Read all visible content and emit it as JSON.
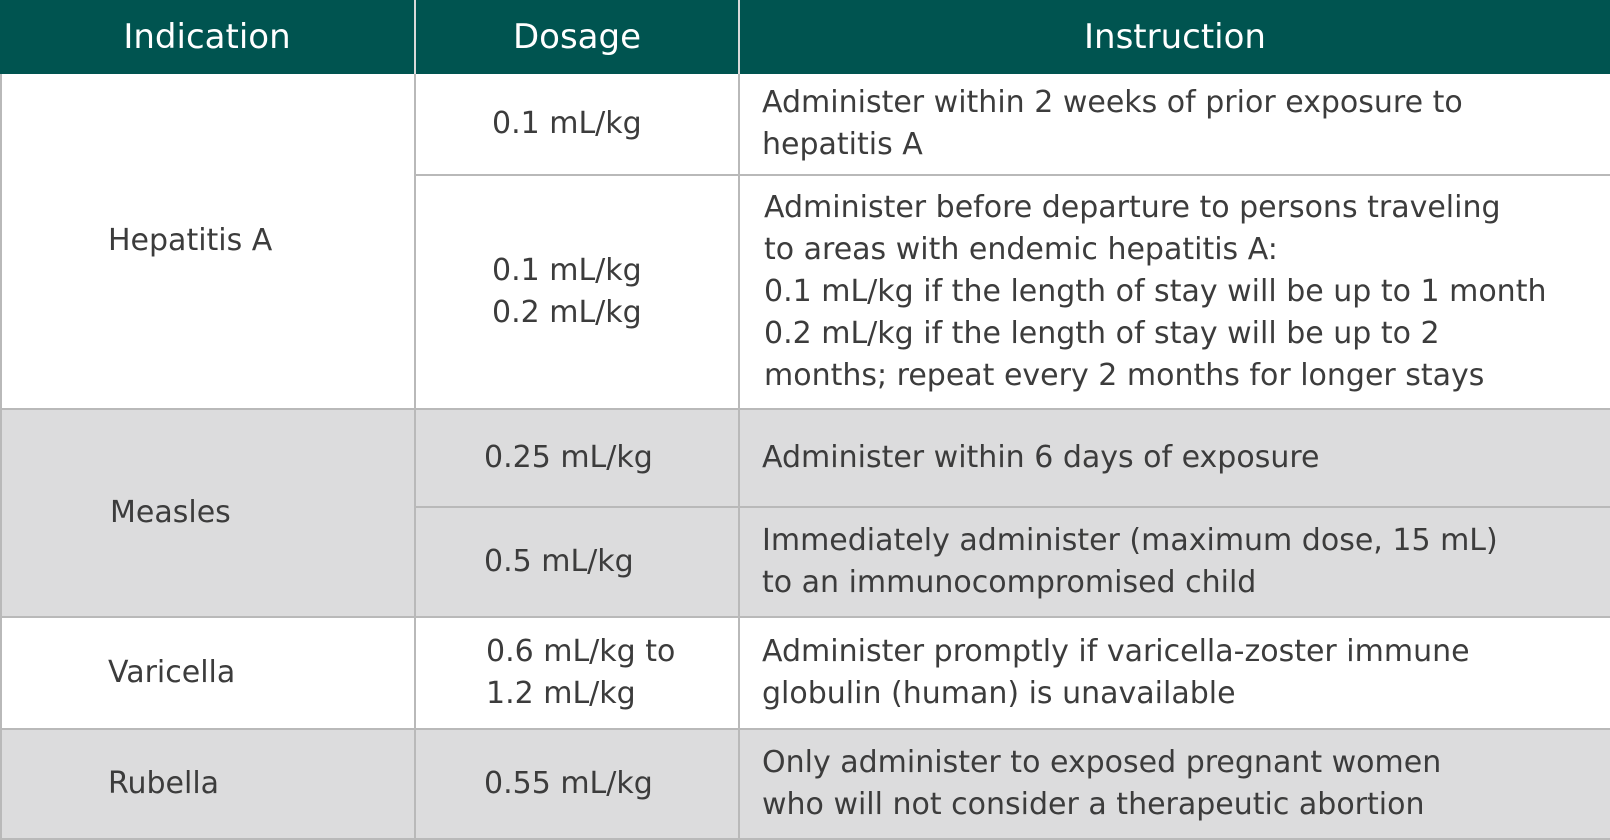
{
  "headers": [
    "Indication",
    "Dosage",
    "Instruction"
  ],
  "indications": [
    {
      "name": "Hepatitis A",
      "rows": [
        {
          "dosage": "0.1 mL/kg",
          "instruction": "Administer within 2 weeks of prior exposure to\nhepatitis A"
        },
        {
          "dosage": "0.1 mL/kg\n0.2 mL/kg",
          "instruction": "Administer before departure to persons traveling\nto areas with endemic hepatitis A:\n0.1 mL/kg if the length of stay will be up to 1 month\n0.2 mL/kg if the length of stay will be up to 2\nmonths; repeat every 2 months for longer stays"
        }
      ]
    },
    {
      "name": "Measles",
      "rows": [
        {
          "dosage": "0.25 mL/kg",
          "instruction": "Administer within 6 days of exposure"
        },
        {
          "dosage": "0.5 mL/kg",
          "instruction": "Immediately administer (maximum dose, 15 mL)\nto an immunocompromised child"
        }
      ]
    },
    {
      "name": "Varicella",
      "rows": [
        {
          "dosage": "0.6 mL/kg to\n1.2 mL/kg",
          "instruction": "Administer promptly if varicella-zoster immune\nglobulin (human) is unavailable"
        }
      ]
    },
    {
      "name": "Rubella",
      "rows": [
        {
          "dosage": "0.55 mL/kg",
          "instruction": "Only administer to exposed pregnant women\nwho will not consider a therapeutic abortion"
        }
      ]
    }
  ],
  "colors": {
    "header_bg": "#005450",
    "header_text": "#ffffff",
    "shade_bg": "#dcdcdd",
    "border": "#b9b9b9"
  }
}
